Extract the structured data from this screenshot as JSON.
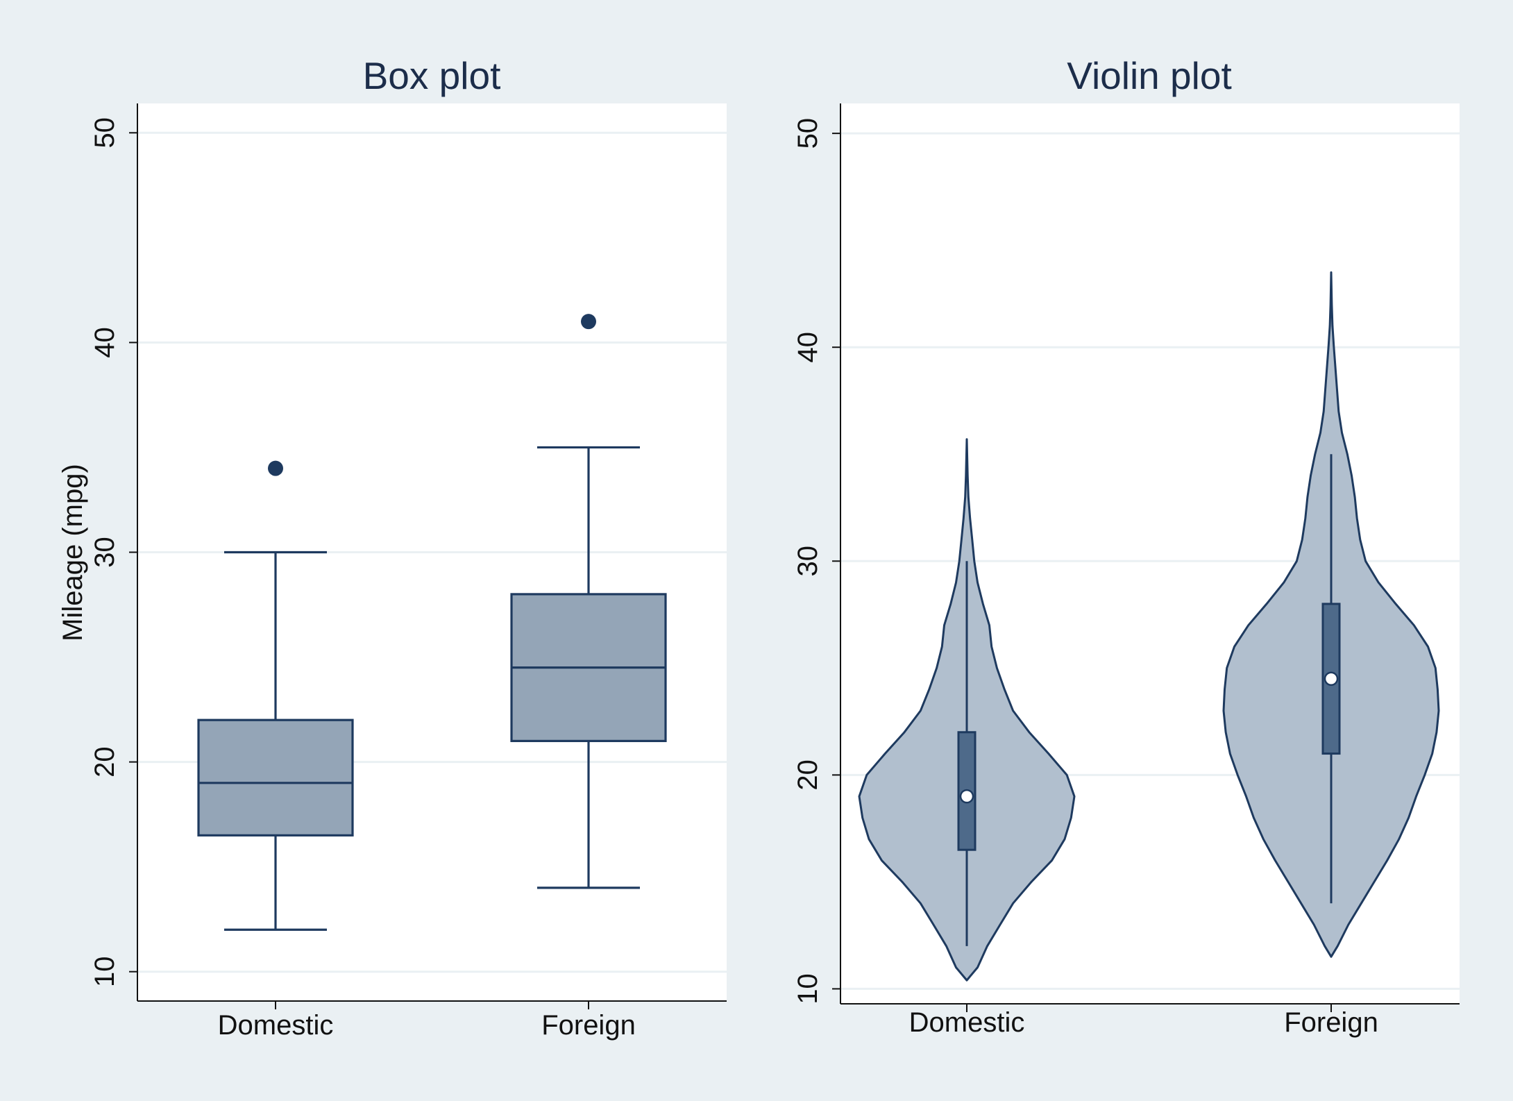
{
  "colors": {
    "background": "#eaf0f3",
    "plot_area": "#ffffff",
    "box_fill": "#94a5b7",
    "violin_fill": "#b1bfce",
    "inner_box_fill": "#4e6a8a",
    "stroke": "#1e3a5f",
    "gridline": "#eaf0f3"
  },
  "chart_data": [
    {
      "type": "box",
      "title": "Box plot",
      "xlabel": "",
      "ylabel": "Mileage (mpg)",
      "ylim": [
        8.6,
        51.4
      ],
      "yticks": [
        "10",
        "20",
        "30",
        "40",
        "50"
      ],
      "grid": true,
      "categories": [
        "Domestic",
        "Foreign"
      ],
      "boxes": [
        {
          "category": "Domestic",
          "whisker_low": 12,
          "q1": 16.5,
          "median": 19,
          "q3": 22,
          "whisker_high": 30,
          "outliers": [
            34
          ]
        },
        {
          "category": "Foreign",
          "whisker_low": 14,
          "q1": 21,
          "median": 24.5,
          "q3": 28,
          "whisker_high": 35,
          "outliers": [
            41
          ]
        }
      ]
    },
    {
      "type": "violin",
      "title": "Violin plot",
      "xlabel": "",
      "ylabel": "",
      "ylim": [
        9.3,
        51.4
      ],
      "yticks": [
        "10",
        "20",
        "30",
        "40",
        "50"
      ],
      "grid": true,
      "categories": [
        "Domestic",
        "Foreign"
      ],
      "violins": [
        {
          "category": "Domestic",
          "min": 12,
          "q1": 16.5,
          "median": 19,
          "q3": 22,
          "max": 30,
          "density": [
            [
              10.4,
              0
            ],
            [
              11,
              0.1
            ],
            [
              12,
              0.19
            ],
            [
              13,
              0.31
            ],
            [
              14,
              0.43
            ],
            [
              15,
              0.6
            ],
            [
              16,
              0.79
            ],
            [
              17,
              0.91
            ],
            [
              18,
              0.97
            ],
            [
              19,
              1.0
            ],
            [
              20,
              0.93
            ],
            [
              21,
              0.76
            ],
            [
              22,
              0.58
            ],
            [
              23,
              0.43
            ],
            [
              24,
              0.35
            ],
            [
              25,
              0.28
            ],
            [
              26,
              0.23
            ],
            [
              27,
              0.21
            ],
            [
              28,
              0.15
            ],
            [
              29,
              0.1
            ],
            [
              30,
              0.07
            ],
            [
              31,
              0.05
            ],
            [
              32,
              0.03
            ],
            [
              33,
              0.015
            ],
            [
              34,
              0.008
            ],
            [
              35.7,
              0
            ]
          ]
        },
        {
          "category": "Foreign",
          "min": 14,
          "q1": 21,
          "median": 24.5,
          "q3": 28,
          "max": 35,
          "density": [
            [
              11.5,
              0
            ],
            [
              12,
              0.06
            ],
            [
              13,
              0.16
            ],
            [
              14,
              0.28
            ],
            [
              15,
              0.4
            ],
            [
              16,
              0.52
            ],
            [
              17,
              0.63
            ],
            [
              18,
              0.72
            ],
            [
              19,
              0.79
            ],
            [
              20,
              0.87
            ],
            [
              21,
              0.94
            ],
            [
              22,
              0.98
            ],
            [
              23,
              1.0
            ],
            [
              24,
              0.99
            ],
            [
              25,
              0.97
            ],
            [
              26,
              0.9
            ],
            [
              27,
              0.77
            ],
            [
              28,
              0.6
            ],
            [
              29,
              0.44
            ],
            [
              30,
              0.32
            ],
            [
              31,
              0.27
            ],
            [
              32,
              0.24
            ],
            [
              33,
              0.22
            ],
            [
              34,
              0.19
            ],
            [
              35,
              0.15
            ],
            [
              36,
              0.1
            ],
            [
              37,
              0.07
            ],
            [
              38,
              0.055
            ],
            [
              39,
              0.04
            ],
            [
              40,
              0.025
            ],
            [
              41,
              0.012
            ],
            [
              42,
              0.006
            ],
            [
              43.5,
              0
            ]
          ]
        }
      ]
    }
  ]
}
